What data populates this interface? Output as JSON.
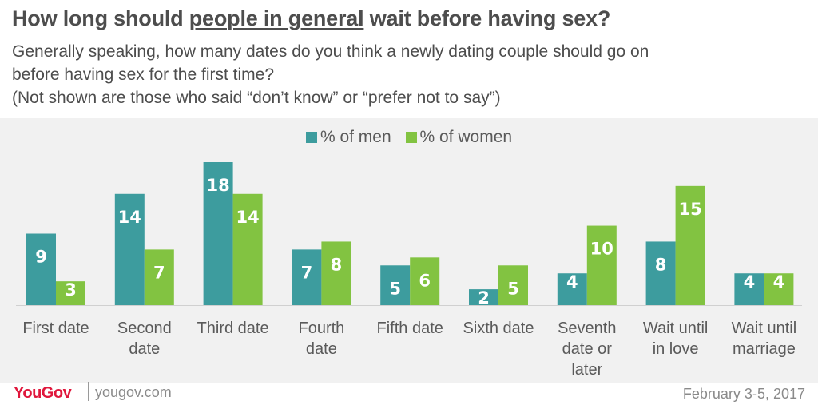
{
  "header": {
    "title_pre": "How long should ",
    "title_underlined": "people in general",
    "title_post": " wait before having sex?",
    "subtitle_line1": "Generally speaking, how many dates do you think a newly dating couple should go on",
    "subtitle_line2": "before having sex for the first time?",
    "subtitle_line3": "(Not shown are those who said “don’t know” or “prefer not to say”)"
  },
  "colors": {
    "men": "#3d9c9e",
    "women": "#82c341",
    "background": "#f1f1f1",
    "text": "#4d4d4d",
    "brand": "#e0173c"
  },
  "chart_data": {
    "type": "bar",
    "categories": [
      [
        "First date"
      ],
      [
        "Second",
        "date"
      ],
      [
        "Third date"
      ],
      [
        "Fourth",
        "date"
      ],
      [
        "Fifth date"
      ],
      [
        "Sixth date"
      ],
      [
        "Seventh",
        "date or",
        "later"
      ],
      [
        "Wait until",
        "in love"
      ],
      [
        "Wait until",
        "marriage"
      ]
    ],
    "series": [
      {
        "name": "% of men",
        "values": [
          9,
          14,
          18,
          7,
          5,
          2,
          4,
          8,
          4
        ]
      },
      {
        "name": "% of women",
        "values": [
          3,
          7,
          14,
          8,
          6,
          5,
          10,
          15,
          4
        ]
      }
    ],
    "ylim": [
      0,
      18
    ],
    "legend": "top-center",
    "grid": false
  },
  "footer": {
    "brand": "YouGov",
    "site": "yougov.com",
    "date": "February 3-5, 2017"
  }
}
